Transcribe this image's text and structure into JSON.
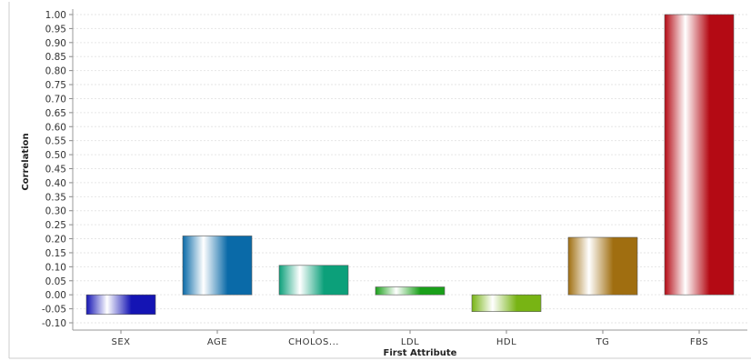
{
  "chart_data": {
    "type": "bar",
    "xlabel": "First Attribute",
    "ylabel": "Correlation",
    "categories": [
      "SEX",
      "AGE",
      "CHOLOS...",
      "LDL",
      "HDL",
      "TG",
      "FBS"
    ],
    "values": [
      -0.07,
      0.21,
      0.105,
      0.028,
      -0.06,
      0.205,
      1.0
    ],
    "ylim": [
      -0.1,
      1.0
    ],
    "ytick_step": 0.05,
    "grid": true,
    "legend": "none",
    "bar_colors": [
      "#1414b4",
      "#0a6aa8",
      "#0ca07a",
      "#1aa01a",
      "#78b414",
      "#a06e10",
      "#b40a14"
    ]
  }
}
